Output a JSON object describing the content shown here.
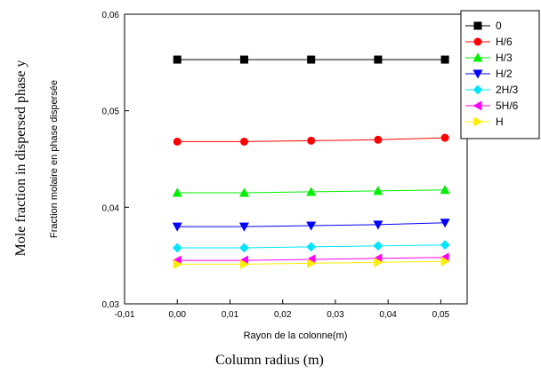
{
  "chart_data": {
    "type": "line",
    "xlabel": "Rayon de la colonne(m)",
    "ylabel": "Fraction molaire en phase dispersée",
    "xlabel_en": "Column radius (m)",
    "ylabel_en": "Mole fraction in dispersed phase y",
    "xlim": [
      -0.01,
      0.055
    ],
    "ylim": [
      0.03,
      0.06
    ],
    "xticks": [
      -0.01,
      0.0,
      0.01,
      0.02,
      0.03,
      0.04,
      0.05
    ],
    "xtick_labels": [
      "-0,01",
      "0,00",
      "0,01",
      "0,02",
      "0,03",
      "0,04",
      "0,05"
    ],
    "yticks": [
      0.03,
      0.04,
      0.05,
      0.06
    ],
    "ytick_labels": [
      "0,03",
      "0,04",
      "0,05",
      "0,06"
    ],
    "grid": false,
    "legend_position": "top-right",
    "x": [
      0.0,
      0.0127,
      0.0254,
      0.0381,
      0.0508
    ],
    "series": [
      {
        "name": "0",
        "color": "#000000",
        "marker": "square",
        "values": [
          0.0553,
          0.0553,
          0.0553,
          0.0553,
          0.0553
        ]
      },
      {
        "name": "H/6",
        "color": "#ff0000",
        "marker": "circle",
        "values": [
          0.0468,
          0.0468,
          0.0469,
          0.047,
          0.0472
        ]
      },
      {
        "name": "H/3",
        "color": "#00ee00",
        "marker": "triangle-up",
        "values": [
          0.0415,
          0.0415,
          0.0416,
          0.0417,
          0.0418
        ]
      },
      {
        "name": "H/2",
        "color": "#0000ff",
        "marker": "triangle-down",
        "values": [
          0.038,
          0.038,
          0.0381,
          0.0382,
          0.0384
        ]
      },
      {
        "name": "2H/3",
        "color": "#00e5ff",
        "marker": "diamond",
        "values": [
          0.0358,
          0.0358,
          0.0359,
          0.036,
          0.0361
        ]
      },
      {
        "name": "5H/6",
        "color": "#ff00ff",
        "marker": "triangle-left",
        "values": [
          0.0345,
          0.0345,
          0.0346,
          0.0347,
          0.0348
        ]
      },
      {
        "name": "H",
        "color": "#ffee00",
        "marker": "triangle-right",
        "values": [
          0.0341,
          0.0341,
          0.0342,
          0.0343,
          0.0344
        ]
      }
    ]
  }
}
